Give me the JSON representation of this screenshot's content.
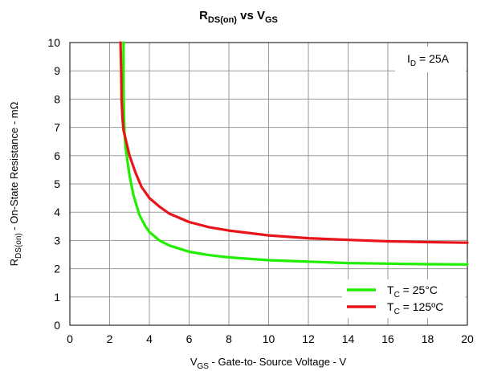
{
  "chart_data": {
    "type": "line",
    "title": {
      "main": "R",
      "main_sub": "DS(on)",
      "joiner": " vs V",
      "joiner_sub": "GS"
    },
    "xlabel": {
      "symbol": "V",
      "symbol_sub": "GS",
      "rest": " - Gate-to- Source Voltage - V"
    },
    "ylabel": {
      "symbol": "R",
      "symbol_sub": "DS(on)",
      "rest": " - On-State Resistance - mΩ"
    },
    "annotation": {
      "symbol": "I",
      "symbol_sub": "D",
      "rest": " = 25A"
    },
    "xlim": [
      0,
      20
    ],
    "ylim": [
      0,
      10
    ],
    "xticks": [
      "0",
      "2",
      "4",
      "6",
      "8",
      "10",
      "12",
      "14",
      "16",
      "18",
      "20"
    ],
    "yticks": [
      "0",
      "1",
      "2",
      "3",
      "4",
      "5",
      "6",
      "7",
      "8",
      "9",
      "10"
    ],
    "grid": true,
    "legend_position": "bottom-right",
    "series": [
      {
        "legend": {
          "symbol": "T",
          "symbol_sub": "C",
          "rest": " = 25°C"
        },
        "color": "#22ee00",
        "x": [
          2.7,
          2.7,
          2.72,
          2.75,
          2.8,
          2.9,
          3.0,
          3.2,
          3.5,
          3.8,
          4.0,
          4.5,
          5.0,
          6.0,
          7.0,
          8.0,
          10.0,
          12.0,
          14.0,
          16.0,
          18.0,
          20.0
        ],
        "y": [
          10.0,
          8.5,
          7.5,
          6.8,
          6.3,
          5.8,
          5.3,
          4.6,
          3.9,
          3.5,
          3.3,
          3.0,
          2.82,
          2.6,
          2.48,
          2.4,
          2.3,
          2.25,
          2.2,
          2.18,
          2.16,
          2.15
        ]
      },
      {
        "legend": {
          "symbol": "T",
          "symbol_sub": "C",
          "rest": " = 125ºC"
        },
        "color": "#e8141a",
        "x": [
          2.55,
          2.58,
          2.6,
          2.65,
          2.7,
          2.8,
          3.0,
          3.3,
          3.6,
          4.0,
          4.5,
          5.0,
          6.0,
          7.0,
          8.0,
          10.0,
          12.0,
          14.0,
          16.0,
          18.0,
          20.0
        ],
        "y": [
          10.0,
          9.0,
          8.0,
          7.3,
          6.9,
          6.6,
          6.0,
          5.4,
          4.9,
          4.5,
          4.2,
          3.95,
          3.65,
          3.47,
          3.35,
          3.18,
          3.08,
          3.02,
          2.97,
          2.94,
          2.92
        ]
      }
    ]
  }
}
